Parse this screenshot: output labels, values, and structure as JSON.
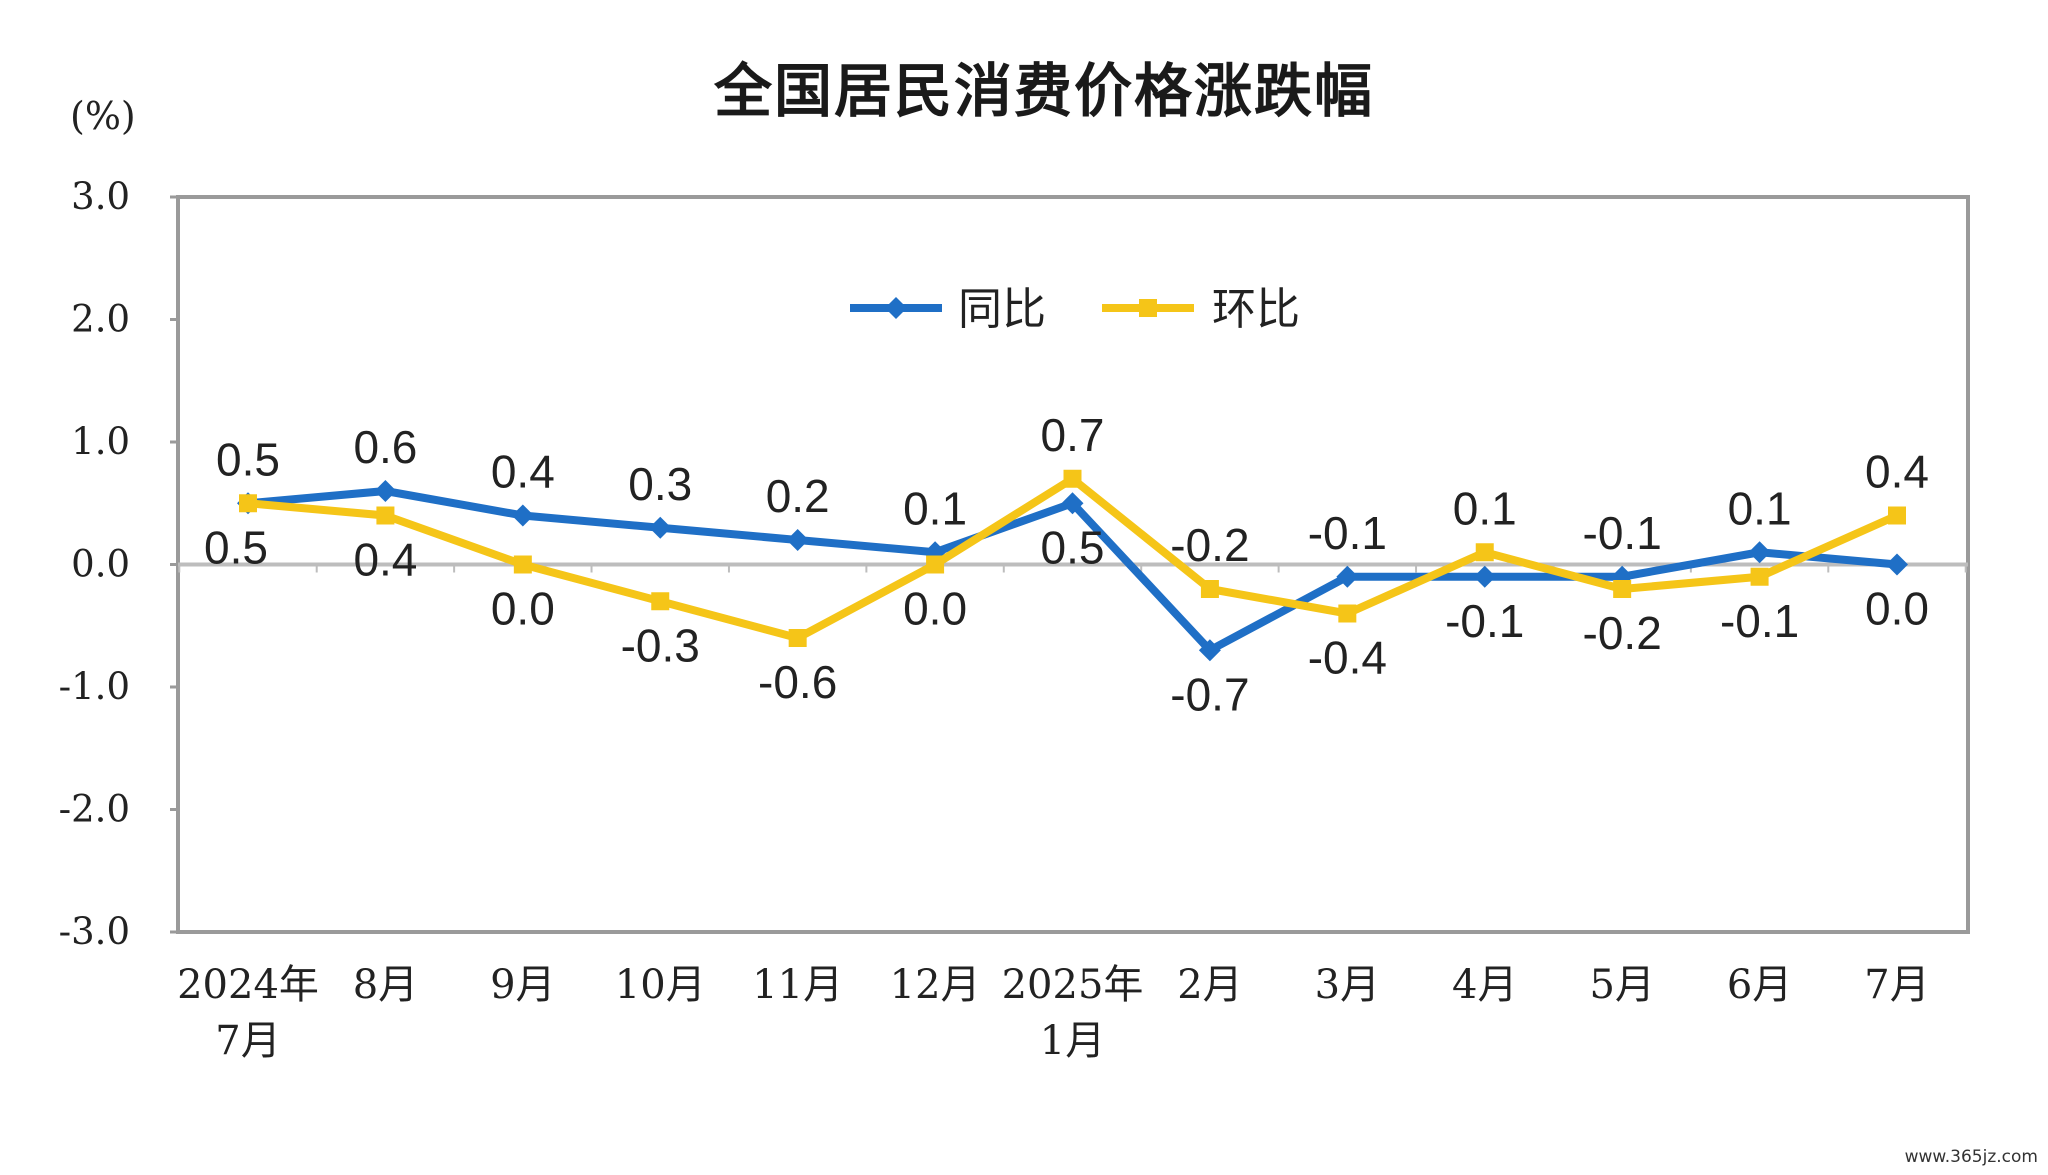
{
  "chart_data": {
    "type": "line",
    "title": "全国居民消费价格涨跌幅",
    "unit_label": "(%)",
    "ylim": [
      -3.0,
      3.0
    ],
    "yticks": [
      "3.0",
      "2.0",
      "1.0",
      "0.0",
      "-1.0",
      "-2.0",
      "-3.0"
    ],
    "categories": [
      [
        "2024年",
        "7月"
      ],
      [
        "8月"
      ],
      [
        "9月"
      ],
      [
        "10月"
      ],
      [
        "11月"
      ],
      [
        "12月"
      ],
      [
        "2025年",
        "1月"
      ],
      [
        "2月"
      ],
      [
        "3月"
      ],
      [
        "4月"
      ],
      [
        "5月"
      ],
      [
        "6月"
      ],
      [
        "7月"
      ]
    ],
    "series": [
      {
        "name": "同比",
        "color": "#1f6fc6",
        "marker": "diamond",
        "values": [
          0.5,
          0.6,
          0.4,
          0.3,
          0.2,
          0.1,
          0.5,
          -0.7,
          -0.1,
          -0.1,
          -0.1,
          0.1,
          0.0
        ],
        "labels": [
          "0.5",
          "0.6",
          "0.4",
          "0.3",
          "0.2",
          "0.1",
          "0.5",
          "-0.7",
          "-0.1",
          "-0.1",
          "-0.1",
          "0.1",
          "0.0"
        ],
        "label_side": [
          "above",
          "above",
          "above",
          "above",
          "above",
          "above",
          "below",
          "below",
          "above",
          "below",
          "above",
          "above",
          "below"
        ]
      },
      {
        "name": "环比",
        "color": "#f5c518",
        "marker": "square",
        "values": [
          0.5,
          0.4,
          0.0,
          -0.3,
          -0.6,
          0.0,
          0.7,
          -0.2,
          -0.4,
          0.1,
          -0.2,
          -0.1,
          0.4
        ],
        "labels": [
          "0.5",
          "0.4",
          "0.0",
          "-0.3",
          "-0.6",
          "0.0",
          "0.7",
          "-0.2",
          "-0.4",
          "0.1",
          "-0.2",
          "-0.1",
          "0.4"
        ],
        "label_side": [
          "below",
          "below",
          "below",
          "below",
          "below",
          "below",
          "above",
          "above",
          "below",
          "above",
          "below",
          "below",
          "above"
        ]
      }
    ],
    "legend": "top-center",
    "grid": false
  },
  "watermark": "www.365jz.com"
}
